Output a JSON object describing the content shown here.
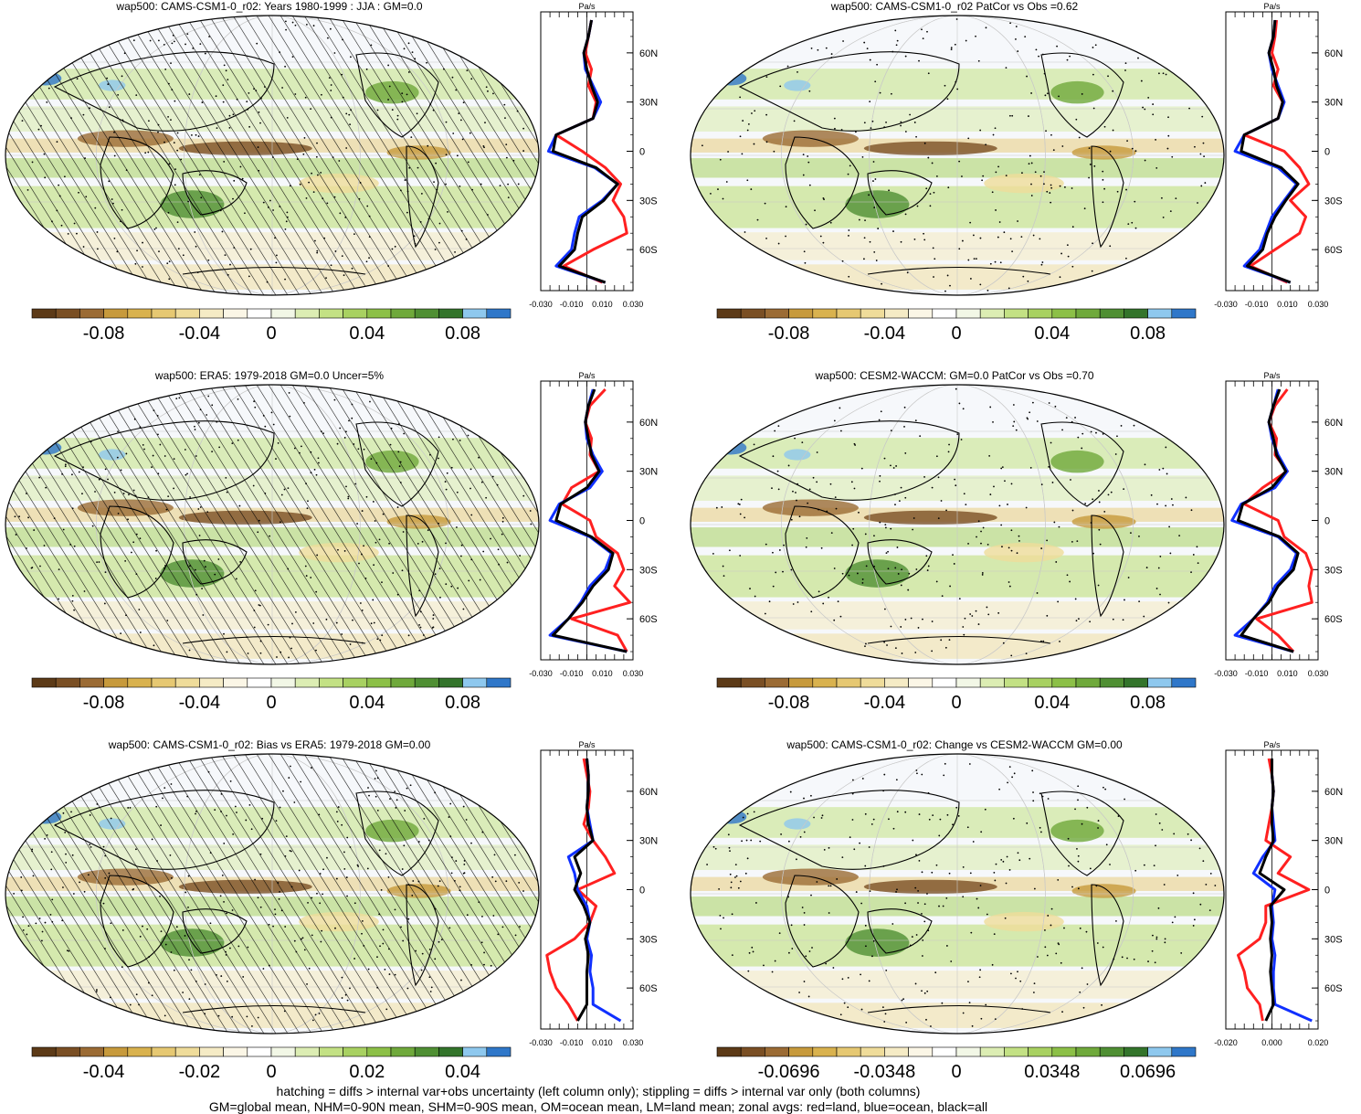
{
  "footnotes": [
    "hatching = diffs > internal var+obs uncertainty (left column only); stippling = diffs > internal var only (both columns)",
    "GM=global mean, NHM=0-90N mean, SHM=0-90S mean, OM=ocean mean, LM=land mean; zonal avgs: red=land, blue=ocean, black=all"
  ],
  "palette": [
    "#5c3a17",
    "#7a4f24",
    "#9b6b34",
    "#c79a3c",
    "#d9b24e",
    "#e6c872",
    "#efdc9a",
    "#f5ebc5",
    "#fbf6e6",
    "#ffffff",
    "#f2f7e6",
    "#dcedb3",
    "#c3e184",
    "#a8d161",
    "#8cc047",
    "#6fa93b",
    "#4f8f33",
    "#33742b",
    "#8ec8ee",
    "#2f77c9"
  ],
  "zonal_colors": {
    "land": "#ff2020",
    "ocean": "#1030ff",
    "all": "#000000"
  },
  "chart_data": [
    {
      "id": "p1",
      "type": "heatmap",
      "title": "wap500: CAMS-CSM1-0_r02: Years 1980-1999 : JJA : GM=0.0",
      "hatching": true,
      "colorbar": {
        "ticks": [
          "-0.08",
          "-0.04",
          "0",
          "0.04",
          "0.08"
        ]
      },
      "zonal": {
        "units": "Pa/s",
        "xticks": [
          "-0.030",
          "-0.010",
          "0.010",
          "0.030"
        ],
        "xlim": [
          -0.03,
          0.03
        ],
        "yticks": [
          "60N",
          "30N",
          "0",
          "30S",
          "60S"
        ],
        "lat": [
          80,
          70,
          60,
          50,
          40,
          30,
          20,
          10,
          0,
          -10,
          -20,
          -30,
          -40,
          -50,
          -60,
          -70,
          -80
        ],
        "series": [
          {
            "key": "land",
            "values": [
              0.003,
              0.001,
              -0.001,
              0.003,
              0.001,
              0.006,
              0.004,
              -0.02,
              -0.003,
              0.012,
              0.022,
              0.017,
              0.024,
              0.026,
              0.004,
              -0.015,
              0.01
            ]
          },
          {
            "key": "ocean",
            "values": [
              0.003,
              0.001,
              -0.002,
              -0.001,
              0.004,
              0.009,
              0.004,
              -0.02,
              -0.025,
              0.005,
              0.02,
              0.01,
              -0.005,
              -0.008,
              -0.01,
              -0.02,
              0.012
            ]
          },
          {
            "key": "all",
            "values": [
              0.003,
              0.001,
              -0.002,
              0.0,
              0.003,
              0.007,
              0.004,
              -0.02,
              -0.022,
              0.006,
              0.02,
              0.011,
              -0.003,
              -0.006,
              -0.008,
              -0.018,
              0.012
            ]
          }
        ]
      }
    },
    {
      "id": "p2",
      "type": "heatmap",
      "title": "wap500: CAMS-CSM1-0_r02 PatCor vs Obs =0.62",
      "hatching": false,
      "colorbar": {
        "ticks": [
          "-0.08",
          "-0.04",
          "0",
          "0.04",
          "0.08"
        ]
      },
      "zonal": {
        "units": "Pa/s",
        "xticks": [
          "-0.030",
          "-0.010",
          "0.010",
          "0.030"
        ],
        "xlim": [
          -0.03,
          0.03
        ],
        "yticks": [
          "60N",
          "30N",
          "0",
          "30S",
          "60S"
        ],
        "lat": [
          80,
          70,
          60,
          50,
          40,
          30,
          20,
          10,
          0,
          -10,
          -20,
          -30,
          -40,
          -50,
          -60,
          -70,
          -80
        ],
        "series": [
          {
            "key": "land",
            "values": [
              0.003,
              0.002,
              0.0,
              0.004,
              0.001,
              0.007,
              0.004,
              -0.018,
              0.008,
              0.018,
              0.024,
              0.012,
              0.022,
              0.018,
              0.002,
              -0.014,
              0.01
            ]
          },
          {
            "key": "ocean",
            "values": [
              0.002,
              0.001,
              -0.002,
              0.0,
              0.004,
              0.008,
              0.004,
              -0.018,
              -0.024,
              0.004,
              0.016,
              0.008,
              0.0,
              -0.004,
              -0.008,
              -0.018,
              0.012
            ]
          },
          {
            "key": "all",
            "values": [
              0.002,
              0.001,
              -0.002,
              0.001,
              0.003,
              0.007,
              0.004,
              -0.018,
              -0.02,
              0.006,
              0.017,
              0.009,
              0.002,
              -0.003,
              -0.006,
              -0.016,
              0.012
            ]
          }
        ]
      }
    },
    {
      "id": "p3",
      "type": "heatmap",
      "title": "wap500: ERA5: 1979-2018 GM=0.0 Uncer=5%",
      "hatching": true,
      "colorbar": {
        "ticks": [
          "-0.08",
          "-0.04",
          "0",
          "0.04",
          "0.08"
        ]
      },
      "zonal": {
        "units": "Pa/s",
        "xticks": [
          "-0.030",
          "-0.010",
          "0.010",
          "0.030"
        ],
        "xlim": [
          -0.03,
          0.03
        ],
        "yticks": [
          "60N",
          "30N",
          "0",
          "30S",
          "60S"
        ],
        "lat": [
          80,
          70,
          60,
          50,
          40,
          30,
          20,
          10,
          0,
          -10,
          -20,
          -30,
          -40,
          -50,
          -60,
          -70,
          -80
        ],
        "series": [
          {
            "key": "land",
            "values": [
              0.012,
              0.002,
              -0.001,
              0.003,
              0.002,
              0.008,
              -0.01,
              -0.016,
              0.002,
              0.006,
              0.02,
              0.024,
              0.018,
              0.028,
              -0.01,
              0.02,
              0.026
            ]
          },
          {
            "key": "ocean",
            "values": [
              0.004,
              0.001,
              -0.001,
              0.0,
              0.004,
              0.01,
              0.002,
              -0.018,
              -0.024,
              0.002,
              0.016,
              0.012,
              0.002,
              -0.004,
              -0.012,
              -0.024,
              0.026
            ]
          },
          {
            "key": "all",
            "values": [
              0.005,
              0.001,
              -0.001,
              0.001,
              0.003,
              0.008,
              0.0,
              -0.017,
              -0.02,
              0.003,
              0.017,
              0.014,
              0.004,
              -0.003,
              -0.012,
              -0.022,
              0.026
            ]
          }
        ]
      }
    },
    {
      "id": "p4",
      "type": "heatmap",
      "title": "wap500: CESM2-WACCM: GM=0.0 PatCor vs Obs =0.70",
      "hatching": false,
      "colorbar": {
        "ticks": [
          "-0.08",
          "-0.04",
          "0",
          "0.04",
          "0.08"
        ]
      },
      "zonal": {
        "units": "Pa/s",
        "xticks": [
          "-0.030",
          "-0.010",
          "0.010",
          "0.030"
        ],
        "xlim": [
          -0.03,
          0.03
        ],
        "yticks": [
          "60N",
          "30N",
          "0",
          "30S",
          "60S"
        ],
        "lat": [
          80,
          70,
          60,
          50,
          40,
          30,
          20,
          10,
          0,
          -10,
          -20,
          -30,
          -40,
          -50,
          -60,
          -70,
          -80
        ],
        "series": [
          {
            "key": "land",
            "values": [
              0.01,
              0.002,
              -0.002,
              0.003,
              0.002,
              0.01,
              -0.006,
              -0.018,
              0.004,
              0.008,
              0.022,
              0.026,
              0.024,
              0.026,
              -0.01,
              0.004,
              0.014
            ]
          },
          {
            "key": "ocean",
            "values": [
              0.004,
              0.001,
              -0.002,
              0.0,
              0.004,
              0.01,
              0.002,
              -0.02,
              -0.026,
              0.004,
              0.016,
              0.012,
              0.002,
              -0.003,
              -0.012,
              -0.024,
              0.014
            ]
          },
          {
            "key": "all",
            "values": [
              0.005,
              0.001,
              -0.002,
              0.001,
              0.003,
              0.009,
              0.0,
              -0.019,
              -0.022,
              0.005,
              0.017,
              0.014,
              0.004,
              -0.002,
              -0.012,
              -0.02,
              0.014
            ]
          }
        ]
      }
    },
    {
      "id": "p5",
      "type": "heatmap",
      "title": "wap500: CAMS-CSM1-0_r02: Bias vs ERA5: 1979-2018 GM=0.00",
      "hatching": true,
      "colorbar": {
        "ticks": [
          "-0.04",
          "-0.02",
          "0",
          "0.02",
          "0.04"
        ]
      },
      "zonal": {
        "units": "Pa/s",
        "xticks": [
          "-0.030",
          "-0.010",
          "0.010",
          "0.030"
        ],
        "xlim": [
          -0.03,
          0.03
        ],
        "yticks": [
          "60N",
          "30N",
          "0",
          "30S",
          "60S"
        ],
        "lat": [
          80,
          70,
          60,
          50,
          40,
          30,
          20,
          10,
          0,
          -10,
          -20,
          -30,
          -40,
          -50,
          -60,
          -70,
          -80
        ],
        "series": [
          {
            "key": "land",
            "values": [
              -0.002,
              0.0,
              0.002,
              0.001,
              -0.002,
              0.004,
              0.012,
              0.018,
              -0.006,
              0.006,
              0.002,
              -0.008,
              -0.026,
              -0.024,
              -0.02,
              -0.012,
              -0.006
            ]
          },
          {
            "key": "ocean",
            "values": [
              0.0,
              0.001,
              0.001,
              0.0,
              0.002,
              0.004,
              -0.012,
              -0.008,
              -0.006,
              0.0,
              0.002,
              0.0,
              0.003,
              0.002,
              0.004,
              0.004,
              0.022
            ]
          },
          {
            "key": "all",
            "values": [
              0.0,
              0.001,
              0.001,
              0.0,
              0.001,
              0.004,
              -0.008,
              -0.004,
              -0.008,
              -0.002,
              0.002,
              -0.001,
              0.001,
              0.0,
              0.0,
              0.0,
              -0.006
            ]
          }
        ]
      }
    },
    {
      "id": "p6",
      "type": "heatmap",
      "title": "wap500: CAMS-CSM1-0_r02: Change vs CESM2-WACCM GM=0.00",
      "hatching": false,
      "colorbar": {
        "ticks": [
          "-0.0696",
          "-0.0348",
          "0",
          "0.0348",
          "0.0696"
        ]
      },
      "zonal": {
        "units": "Pa/s",
        "xticks": [
          "-0.020",
          "0.000",
          "0.020"
        ],
        "xlim": [
          -0.03,
          0.03
        ],
        "yticks": [
          "60N",
          "30N",
          "0",
          "30S",
          "60S"
        ],
        "lat": [
          80,
          70,
          60,
          50,
          40,
          30,
          20,
          10,
          0,
          -10,
          -20,
          -30,
          -40,
          -50,
          -60,
          -70,
          -80
        ],
        "series": [
          {
            "key": "land",
            "values": [
              -0.002,
              0.0,
              0.001,
              0.0,
              -0.002,
              -0.004,
              0.012,
              0.004,
              0.024,
              -0.004,
              -0.004,
              -0.008,
              -0.022,
              -0.018,
              -0.016,
              -0.008,
              -0.006
            ]
          },
          {
            "key": "ocean",
            "values": [
              0.0,
              0.0,
              0.001,
              0.0,
              0.001,
              0.002,
              -0.006,
              -0.012,
              0.002,
              0.0,
              0.001,
              0.0,
              0.002,
              0.001,
              0.001,
              0.002,
              0.026
            ]
          },
          {
            "key": "all",
            "values": [
              0.0,
              0.0,
              0.001,
              0.0,
              0.0,
              0.001,
              -0.004,
              -0.008,
              0.008,
              -0.001,
              0.0,
              -0.001,
              0.0,
              -0.001,
              0.0,
              0.001,
              -0.004
            ]
          }
        ]
      }
    }
  ]
}
